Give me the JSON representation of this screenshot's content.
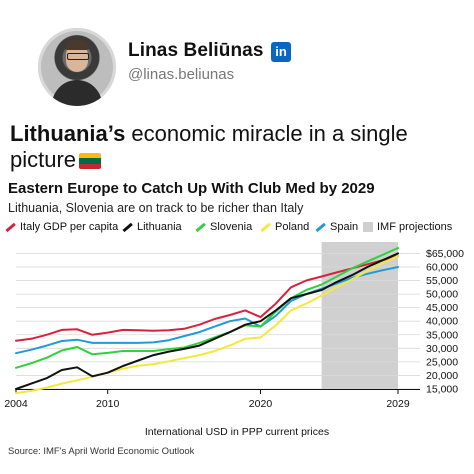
{
  "post": {
    "author_name": "Linas Beliūnas",
    "linkedin_badge": "in",
    "handle": "@linas.beliunas",
    "headline_bold": "Lithuania’s",
    "headline_rest": " economic miracle in a single picture",
    "flag_colors": [
      "#fdb913",
      "#006a44",
      "#c1272d"
    ]
  },
  "chart_data": {
    "type": "line",
    "title": "Eastern Europe to Catch Up With Club Med by 2029",
    "subtitle": "Lithuania, Slovenia are on track to be richer than Italy",
    "xlabel": "International USD in PPP current prices",
    "source": "Source: IMF's April World Economic Outlook",
    "xlim": [
      2004,
      2029
    ],
    "ylim": [
      15000,
      67000
    ],
    "x_ticks": [
      "2004",
      "2010",
      "2020",
      "2029"
    ],
    "y_ticks": [
      "$65,000",
      "60,000",
      "55,000",
      "50,000",
      "45,000",
      "40,000",
      "35,000",
      "30,000",
      "25,000",
      "20,000",
      "15,000"
    ],
    "y_tick_values": [
      65000,
      60000,
      55000,
      50000,
      45000,
      40000,
      35000,
      30000,
      25000,
      20000,
      15000
    ],
    "projection_label": "IMF projections",
    "projection_range": [
      2024,
      2029
    ],
    "projection_color": "#d0d0d0",
    "legend_position": "top",
    "grid": "horizontal",
    "x": [
      2004,
      2005,
      2006,
      2007,
      2008,
      2009,
      2010,
      2011,
      2012,
      2013,
      2014,
      2015,
      2016,
      2017,
      2018,
      2019,
      2020,
      2021,
      2022,
      2023,
      2024,
      2025,
      2026,
      2027,
      2028,
      2029
    ],
    "series": [
      {
        "name": "Italy GDP per capita",
        "color": "#d6213f",
        "values": [
          32800,
          33500,
          35000,
          36800,
          37000,
          35000,
          35800,
          36800,
          36700,
          36500,
          36700,
          37200,
          38700,
          40800,
          42300,
          44000,
          41500,
          46500,
          52500,
          55000,
          56500,
          58000,
          59500,
          61000,
          62500,
          64000
        ]
      },
      {
        "name": "Lithuania",
        "color": "#111111",
        "values": [
          15000,
          17000,
          19000,
          22000,
          23000,
          19700,
          21000,
          23500,
          25500,
          27500,
          28800,
          29800,
          31000,
          33500,
          36000,
          38700,
          40000,
          44000,
          48500,
          50000,
          51500,
          54500,
          57000,
          60000,
          62500,
          65000
        ]
      },
      {
        "name": "Slovenia",
        "color": "#2fd13d",
        "values": [
          22800,
          24500,
          26500,
          29200,
          30500,
          27800,
          28300,
          29000,
          29000,
          29000,
          29700,
          30300,
          32000,
          34000,
          36000,
          38500,
          38000,
          43500,
          48500,
          51500,
          53500,
          56500,
          59500,
          62000,
          64500,
          67000
        ]
      },
      {
        "name": "Poland",
        "color": "#f2e93a",
        "values": [
          13500,
          14300,
          15500,
          17000,
          18200,
          19500,
          21000,
          22500,
          23600,
          24200,
          25200,
          26400,
          27500,
          29000,
          31000,
          33500,
          34000,
          38500,
          44000,
          46500,
          49500,
          52500,
          55500,
          58500,
          61500,
          64000
        ]
      },
      {
        "name": "Spain",
        "color": "#1f9bd8",
        "values": [
          28200,
          29500,
          31000,
          32700,
          33200,
          32000,
          32000,
          32000,
          32000,
          32200,
          33000,
          34500,
          36000,
          38000,
          40000,
          41000,
          38000,
          42000,
          47500,
          50000,
          52000,
          54000,
          56000,
          57500,
          58800,
          60000
        ]
      }
    ]
  }
}
